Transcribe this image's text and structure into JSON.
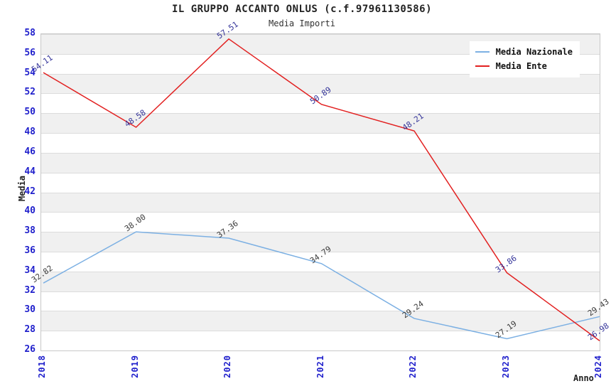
{
  "header": {
    "title": "IL GRUPPO ACCANTO ONLUS (c.f.97961130586)",
    "subtitle": "Media Importi"
  },
  "chart_data": {
    "type": "line",
    "x": [
      "2018",
      "2019",
      "2020",
      "2021",
      "2022",
      "2023",
      "2024"
    ],
    "series": [
      {
        "name": "Media Nazionale",
        "color": "#7cb0e3",
        "label_color": "#3a3a3a",
        "values": [
          32.82,
          38.0,
          37.36,
          34.79,
          29.24,
          27.19,
          29.43
        ]
      },
      {
        "name": "Media Ente",
        "color": "#e22020",
        "label_color": "#333399",
        "values": [
          54.11,
          48.58,
          57.51,
          50.89,
          48.21,
          33.86,
          26.98
        ]
      }
    ],
    "title": "Media Importi",
    "xlabel": "Anno",
    "ylabel": "Media",
    "ylim": [
      26,
      58
    ],
    "ytick_step": 2,
    "y_ticks": [
      26,
      28,
      30,
      32,
      34,
      36,
      38,
      40,
      42,
      44,
      46,
      48,
      50,
      52,
      54,
      56,
      58
    ],
    "grid": true,
    "legend_position": "top-right",
    "tick_color": "#2020cc",
    "band_colors": [
      "#ffffff",
      "#f0f0f0"
    ],
    "grid_color": "#dcdcdc"
  }
}
